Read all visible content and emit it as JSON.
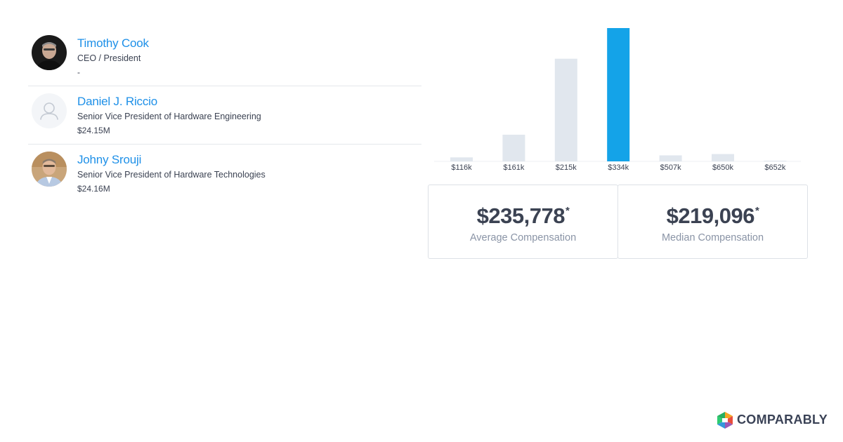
{
  "executives": [
    {
      "name": "Timothy Cook",
      "title": "CEO / President",
      "compensation": "-",
      "avatar": "photo-dark"
    },
    {
      "name": "Daniel J. Riccio",
      "title": "Senior Vice President of Hardware Engineering",
      "compensation": "$24.15M",
      "avatar": "placeholder-user-icon"
    },
    {
      "name": "Johny Srouji",
      "title": "Senior Vice President of Hardware Technologies",
      "compensation": "$24.16M",
      "avatar": "photo-light"
    }
  ],
  "stats": {
    "average": {
      "value": "$235,778",
      "asterisk": "*",
      "label": "Average Compensation"
    },
    "median": {
      "value": "$219,096",
      "asterisk": "*",
      "label": "Median Compensation"
    }
  },
  "chart_data": {
    "type": "bar",
    "categories": [
      "$116k",
      "$161k",
      "$215k",
      "$334k",
      "$507k",
      "$650k",
      "$652k"
    ],
    "values": [
      3,
      20,
      77,
      100,
      4.5,
      5.5,
      0.5
    ],
    "highlight_index": 3,
    "colors": {
      "default": "#e1e7ee",
      "highlight": "#14a3e8"
    },
    "ylim": [
      0,
      100
    ],
    "grid": false
  },
  "logo": {
    "text": "COMPARABLY"
  }
}
